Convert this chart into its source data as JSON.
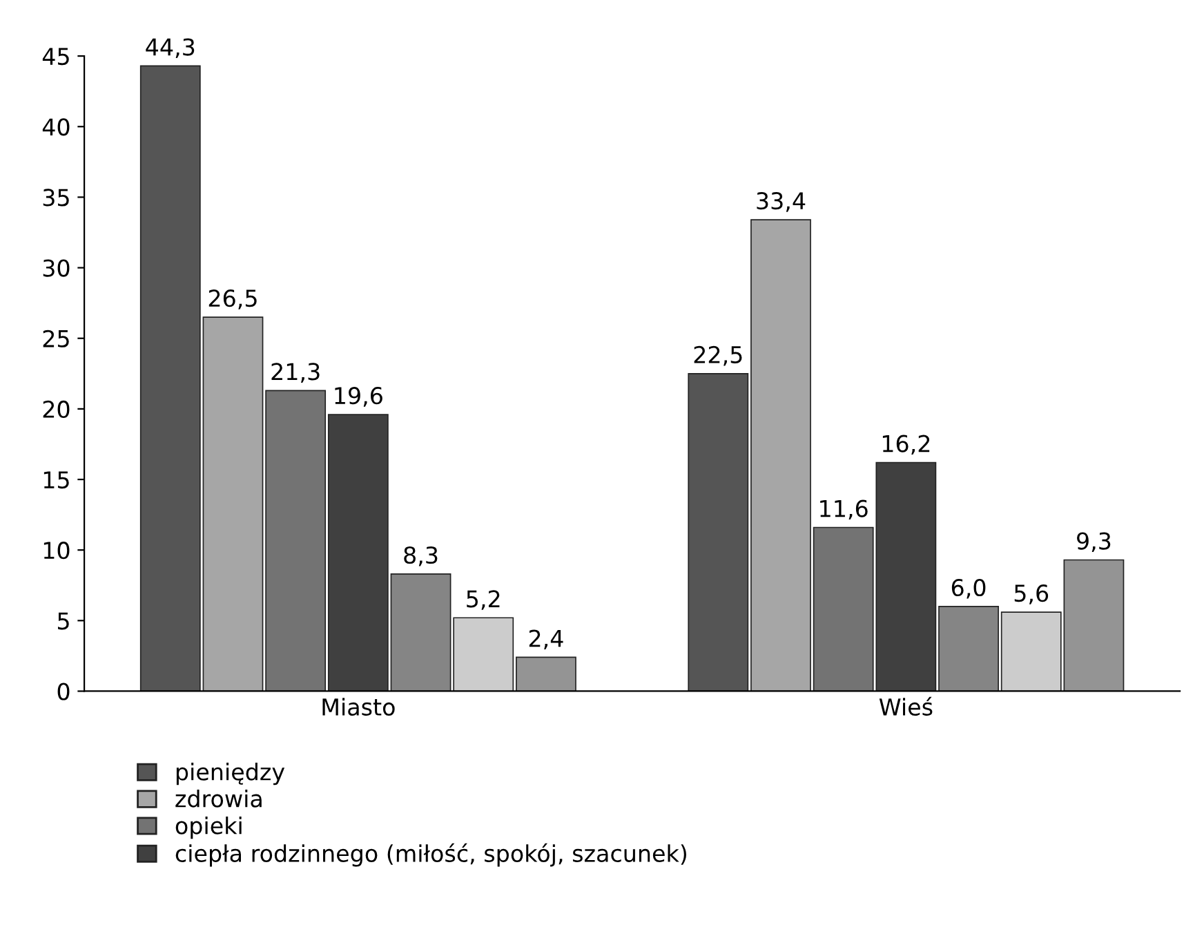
{
  "chart_data": {
    "type": "bar",
    "categories": [
      "Miasto",
      "Wieś"
    ],
    "series": [
      {
        "name": "pieniędzy",
        "color": "#555555",
        "values": [
          44.3,
          22.5
        ],
        "value_labels": [
          "44,3",
          "22,5"
        ]
      },
      {
        "name": "zdrowia",
        "color": "#a6a6a6",
        "values": [
          26.5,
          33.4
        ],
        "value_labels": [
          "26,5",
          "33,4"
        ]
      },
      {
        "name": "opieki",
        "color": "#737373",
        "values": [
          21.3,
          11.6
        ],
        "value_labels": [
          "21,3",
          "11,6"
        ]
      },
      {
        "name": "ciepła rodzinnego (miłość, spokój, szacunek)",
        "color": "#404040",
        "values": [
          19.6,
          16.2
        ],
        "value_labels": [
          "19,6",
          "16,2"
        ]
      },
      {
        "color": "#858585",
        "values": [
          8.3,
          6.0
        ],
        "value_labels": [
          "8,3",
          "6,0"
        ]
      },
      {
        "color": "#cccccc",
        "values": [
          5.2,
          5.6
        ],
        "value_labels": [
          "5,2",
          "5,6"
        ]
      },
      {
        "color": "#949494",
        "values": [
          2.4,
          9.3
        ],
        "value_labels": [
          "2,4",
          "9,3"
        ]
      }
    ],
    "ylim": [
      0,
      45
    ],
    "yticks": [
      0,
      5,
      10,
      15,
      20,
      25,
      30,
      35,
      40,
      45
    ],
    "grid": false,
    "legend": "bottom"
  }
}
